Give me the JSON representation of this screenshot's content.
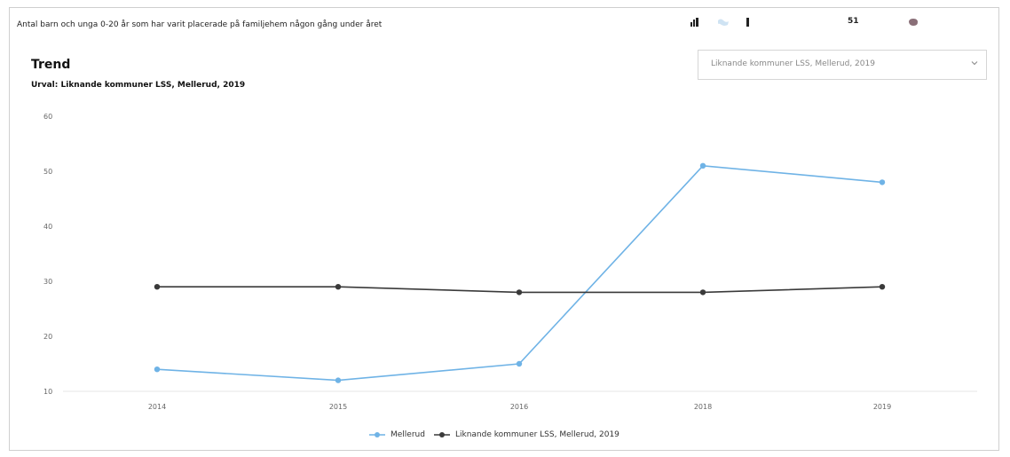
{
  "page": {
    "top_fragment": "",
    "indicator_text": "Antal barn och unga 0-20 år som har varit placerade på familjehem någon gång under året",
    "section_title": "Trend",
    "urval_label": "Urval: Liknande kommuner LSS, Mellerud, 2019"
  },
  "toolbar": {
    "icons": [
      "bar-chart-icon",
      "map-icon",
      "single-bar-icon",
      "blank-icon",
      "numeric-icon",
      "color-icon"
    ],
    "numeric_text": "51"
  },
  "selector": {
    "value": "Liknande kommuner LSS, Mellerud, 2019",
    "chevron_icon": "chevron-down-icon"
  },
  "colors": {
    "mellerud": "#6fb3e6",
    "liknande": "#3a3a3a",
    "grid": "#e6e6e6",
    "axis_text": "#666666"
  },
  "chart_data": {
    "type": "line",
    "categories": [
      "2014",
      "2015",
      "2016",
      "2018",
      "2019"
    ],
    "ylim": [
      10,
      60
    ],
    "yticks": [
      10,
      20,
      30,
      40,
      50,
      60
    ],
    "series": [
      {
        "name": "Mellerud",
        "values": [
          14,
          12,
          15,
          51,
          48
        ]
      },
      {
        "name": "Liknande kommuner LSS, Mellerud, 2019",
        "values": [
          29,
          29,
          28,
          28,
          29
        ]
      }
    ],
    "title": "Trend",
    "legend_position": "bottom",
    "grid": false
  }
}
